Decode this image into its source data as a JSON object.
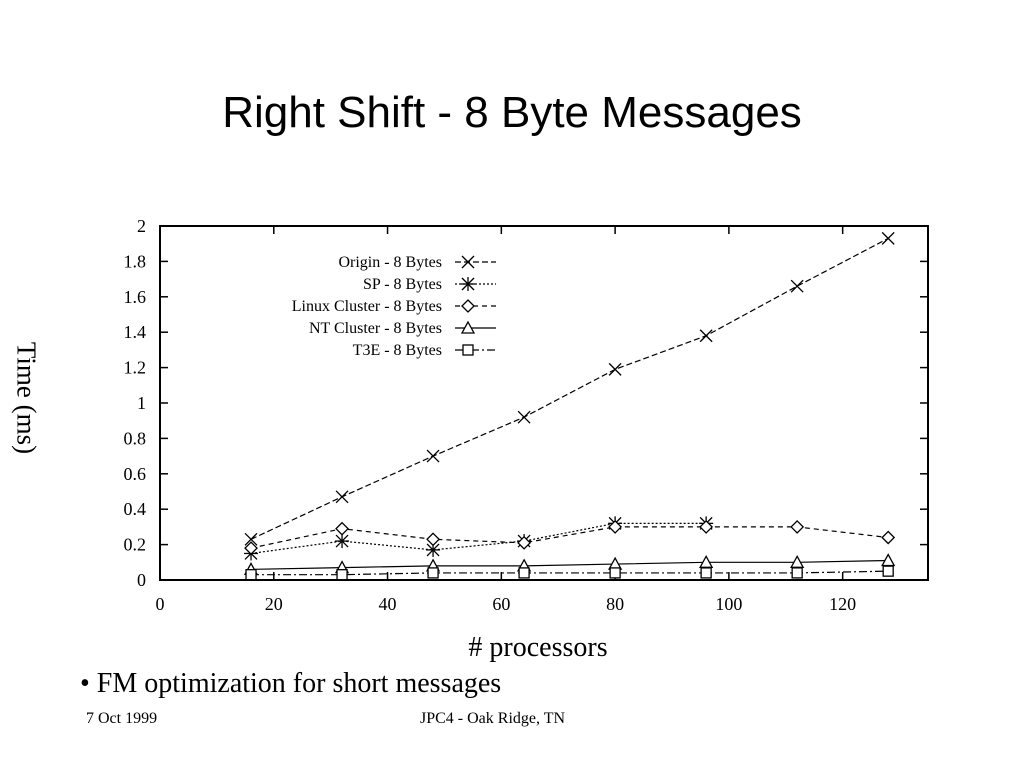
{
  "slide": {
    "title": "Right Shift - 8 Byte Messages",
    "bullet": "• FM optimization for short messages",
    "footer_left": "7 Oct 1999",
    "footer_center": "JPC4 - Oak Ridge, TN"
  },
  "chart_data": {
    "type": "line",
    "xlabel": "# processors",
    "ylabel": "Time (ms)",
    "xlim": [
      0,
      135
    ],
    "ylim": [
      0,
      2
    ],
    "xticks": [
      0,
      20,
      40,
      60,
      80,
      100,
      120
    ],
    "yticks": [
      0,
      0.2,
      0.4,
      0.6,
      0.8,
      1,
      1.2,
      1.4,
      1.6,
      1.8,
      2
    ],
    "ytick_labels": [
      "0",
      "0.2",
      "0.4",
      "0.6",
      "0.8",
      "1",
      "1.2",
      "1.4",
      "1.6",
      "1.8",
      "2"
    ],
    "legend_position": "top-left",
    "grid": false,
    "series": [
      {
        "name": "Origin - 8 Bytes",
        "marker": "x",
        "dash": "6,3",
        "x": [
          16,
          32,
          48,
          64,
          80,
          96,
          112,
          128
        ],
        "y": [
          0.23,
          0.47,
          0.7,
          0.92,
          1.19,
          1.38,
          1.66,
          1.93
        ]
      },
      {
        "name": "SP - 8 Bytes",
        "marker": "star",
        "dash": "2,2",
        "x": [
          16,
          32,
          48,
          64,
          80,
          96
        ],
        "y": [
          0.15,
          0.22,
          0.17,
          0.22,
          0.32,
          0.32
        ]
      },
      {
        "name": "Linux Cluster - 8 Bytes",
        "marker": "diamond",
        "dash": "5,4",
        "x": [
          16,
          32,
          48,
          64,
          80,
          96,
          112,
          128
        ],
        "y": [
          0.18,
          0.29,
          0.23,
          0.21,
          0.3,
          0.3,
          0.3,
          0.24
        ]
      },
      {
        "name": "NT Cluster - 8 Bytes",
        "marker": "triangle",
        "dash": "",
        "x": [
          16,
          32,
          48,
          64,
          80,
          96,
          112,
          128
        ],
        "y": [
          0.06,
          0.07,
          0.08,
          0.08,
          0.09,
          0.1,
          0.1,
          0.11
        ]
      },
      {
        "name": "T3E - 8 Bytes",
        "marker": "square",
        "dash": "8,3,2,3",
        "x": [
          16,
          32,
          48,
          64,
          80,
          96,
          112,
          128
        ],
        "y": [
          0.03,
          0.03,
          0.04,
          0.04,
          0.04,
          0.04,
          0.04,
          0.05
        ]
      }
    ]
  }
}
